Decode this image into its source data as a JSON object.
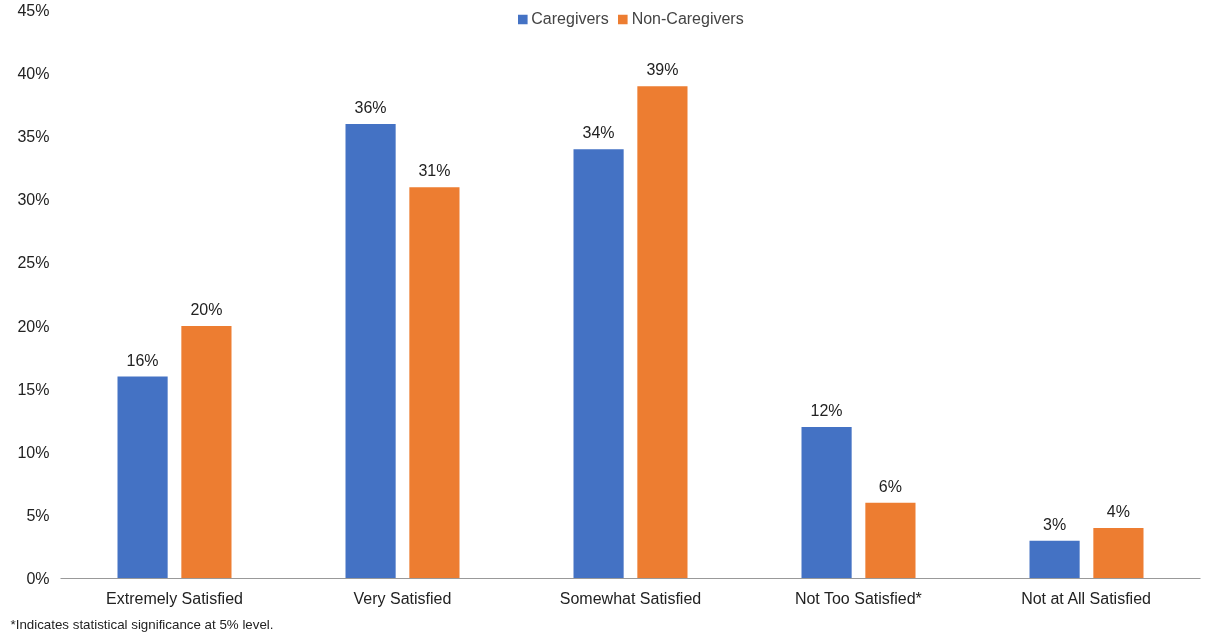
{
  "chart_data": {
    "type": "bar",
    "categories": [
      "Extremely Satisfied",
      "Very Satisfied",
      "Somewhat Satisfied",
      "Not Too Satisfied*",
      "Not at All Satisfied"
    ],
    "series": [
      {
        "name": "Caregivers",
        "color": "#4472c4",
        "values": [
          16,
          36,
          34,
          12,
          3
        ],
        "value_labels": [
          "16%",
          "36%",
          "34%",
          "12%",
          "3%"
        ]
      },
      {
        "name": "Non-Caregivers",
        "color": "#ed7d31",
        "values": [
          20,
          31,
          39,
          6,
          4
        ],
        "value_labels": [
          "20%",
          "31%",
          "39%",
          "6%",
          "4%"
        ]
      }
    ],
    "ylim": [
      0,
      45
    ],
    "yticks": [
      {
        "value": 0,
        "label": "0%"
      },
      {
        "value": 5,
        "label": "5%"
      },
      {
        "value": 10,
        "label": "10%"
      },
      {
        "value": 15,
        "label": "15%"
      },
      {
        "value": 20,
        "label": "20%"
      },
      {
        "value": 25,
        "label": "25%"
      },
      {
        "value": 30,
        "label": "30%"
      },
      {
        "value": 35,
        "label": "35%"
      },
      {
        "value": 40,
        "label": "40%"
      },
      {
        "value": 45,
        "label": "45%"
      }
    ],
    "grid": false,
    "legend": "top",
    "annotations": [
      "*Indicates statistical significance at 5% level."
    ]
  }
}
